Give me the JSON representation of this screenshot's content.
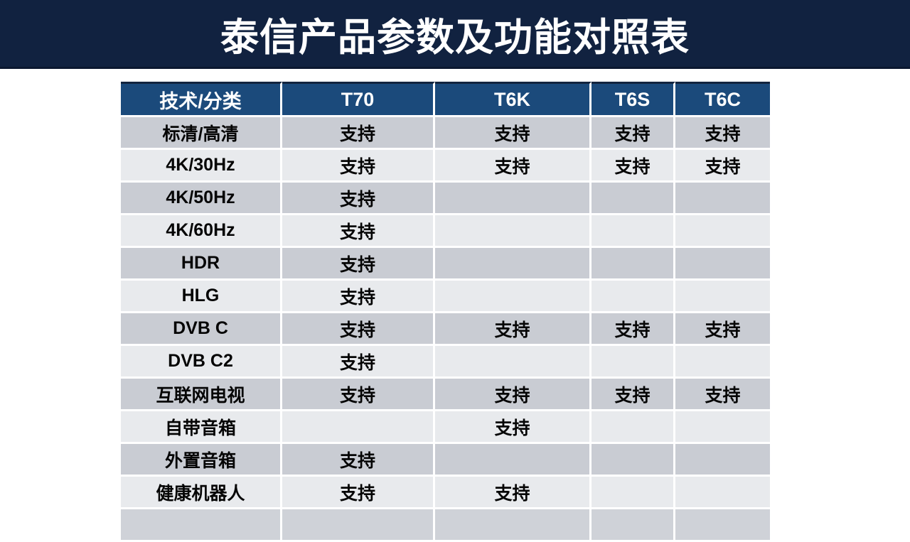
{
  "title": "泰信产品参数及功能对照表",
  "table": {
    "headers": [
      "技术/分类",
      "T70",
      "T6K",
      "T6S",
      "T6C"
    ],
    "rows": [
      {
        "label": "标清/高清",
        "values": [
          "支持",
          "支持",
          "支持",
          "支持"
        ]
      },
      {
        "label": "4K/30Hz",
        "values": [
          "支持",
          "支持",
          "支持",
          "支持"
        ]
      },
      {
        "label": "4K/50Hz",
        "values": [
          "支持",
          "",
          "",
          ""
        ]
      },
      {
        "label": "4K/60Hz",
        "values": [
          "支持",
          "",
          "",
          ""
        ]
      },
      {
        "label": "HDR",
        "values": [
          "支持",
          "",
          "",
          ""
        ]
      },
      {
        "label": "HLG",
        "values": [
          "支持",
          "",
          "",
          ""
        ]
      },
      {
        "label": "DVB C",
        "values": [
          "支持",
          "支持",
          "支持",
          "支持"
        ]
      },
      {
        "label": "DVB C2",
        "values": [
          "支持",
          "",
          "",
          ""
        ]
      },
      {
        "label": "互联网电视",
        "values": [
          "支持",
          "支持",
          "支持",
          "支持"
        ]
      },
      {
        "label": "自带音箱",
        "values": [
          "",
          "支持",
          "",
          ""
        ]
      },
      {
        "label": "外置音箱",
        "values": [
          "支持",
          "",
          "",
          ""
        ]
      },
      {
        "label": "健康机器人",
        "values": [
          "支持",
          "支持",
          "",
          ""
        ]
      }
    ]
  },
  "colors": {
    "title_bar_bg": "#112240",
    "header_bg": "#1B4A7B",
    "row_dark": "#C9CCD3",
    "row_light": "#E8EAED",
    "header_text": "#FFFFFF",
    "body_text": "#050505"
  }
}
